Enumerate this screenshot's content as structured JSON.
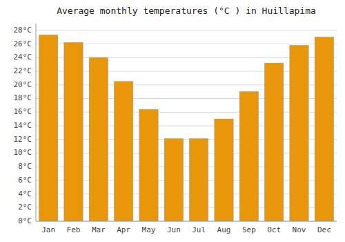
{
  "chart_data": {
    "type": "bar",
    "title": "Average monthly temperatures (°C ) in Huillapima",
    "categories": [
      "Jan",
      "Feb",
      "Mar",
      "Apr",
      "May",
      "Jun",
      "Jul",
      "Aug",
      "Sep",
      "Oct",
      "Nov",
      "Dec"
    ],
    "values": [
      27.3,
      26.2,
      24.0,
      20.5,
      16.4,
      12.1,
      12.1,
      15.0,
      19.0,
      23.2,
      25.8,
      27.0
    ],
    "color": "#E8960A",
    "ylim": [
      0,
      29
    ],
    "yticks": [
      {
        "value": 0,
        "label": "0°C"
      },
      {
        "value": 2,
        "label": "2°C"
      },
      {
        "value": 4,
        "label": "4°C"
      },
      {
        "value": 6,
        "label": "6°C"
      },
      {
        "value": 8,
        "label": "8°C"
      },
      {
        "value": 10,
        "label": "10°C"
      },
      {
        "value": 12,
        "label": "12°C"
      },
      {
        "value": 14,
        "label": "14°C"
      },
      {
        "value": 16,
        "label": "16°C"
      },
      {
        "value": 18,
        "label": "18°C"
      },
      {
        "value": 20,
        "label": "20°C"
      },
      {
        "value": 22,
        "label": "22°C"
      },
      {
        "value": 24,
        "label": "24°C"
      },
      {
        "value": 26,
        "label": "26°C"
      },
      {
        "value": 28,
        "label": "28°C"
      }
    ],
    "grid": true
  }
}
